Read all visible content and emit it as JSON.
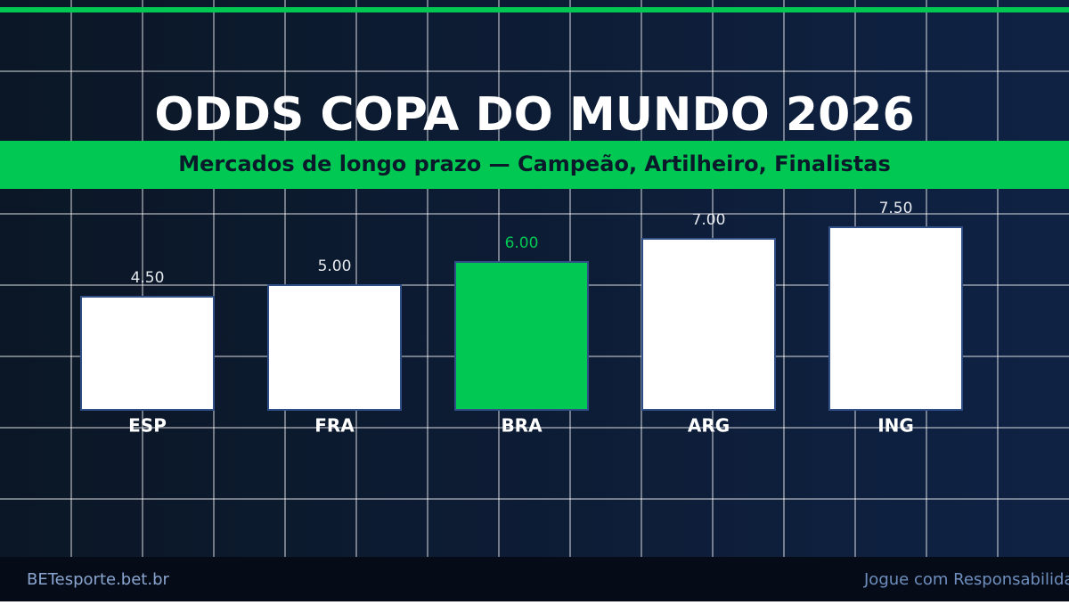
{
  "chart_data": {
    "type": "bar",
    "title": "ODDS COPA DO MUNDO 2026",
    "subtitle": "Mercados de longo prazo — Campeão, Artilheiro, Finalistas",
    "categories": [
      "ESP",
      "FRA",
      "BRA",
      "ARG",
      "ING"
    ],
    "values": [
      4.5,
      5,
      6,
      7,
      7.5
    ],
    "value_labels": [
      "4.50",
      "5.00",
      "6.00",
      "7.00",
      "7.50"
    ],
    "colors": [
      "#ffffff",
      "#ffffff",
      "#00c853",
      "#ffffff",
      "#ffffff"
    ]
  },
  "footer": {
    "left": "BETesporte.bet.br",
    "right": "Jogue com Responsabilidade"
  }
}
